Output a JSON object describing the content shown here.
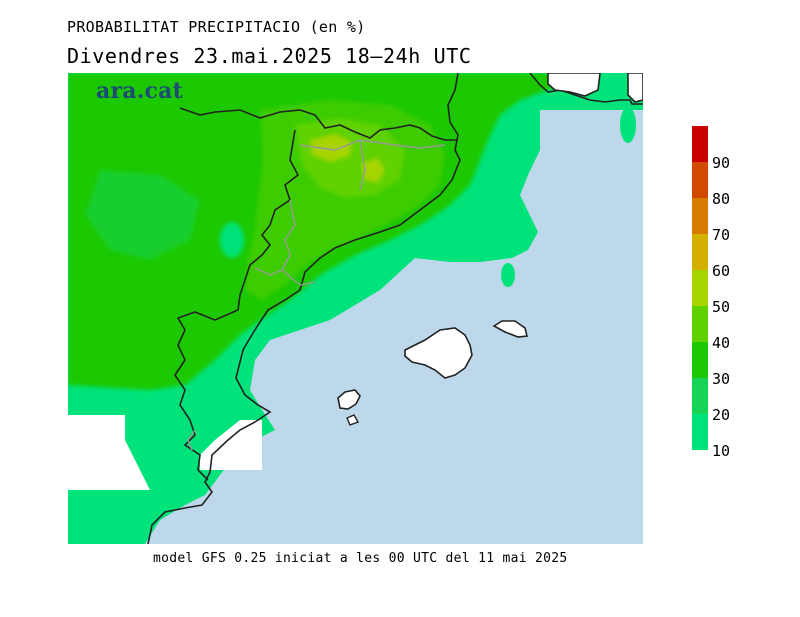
{
  "title": "PROBABILITAT PRECIPITACIO (en %)",
  "subtitle": "Divendres  23.mai.2025 18—24h UTC",
  "logo": "ara.cat",
  "footer": "model GFS 0.25 iniciat a les 00 UTC del 11 mai 2025",
  "colors": {
    "sea": "#bcd8ea",
    "land_white": "#ffffff",
    "coast": "#222222",
    "border_inner": "#999999"
  },
  "legend": {
    "labels": [
      "90",
      "80",
      "70",
      "60",
      "50",
      "40",
      "30",
      "20",
      "10"
    ],
    "colors": [
      "#c80000",
      "#d24a00",
      "#d87a00",
      "#d6b000",
      "#a6d400",
      "#5ed200",
      "#1cc800",
      "#18d456",
      "#00e27a"
    ]
  }
}
